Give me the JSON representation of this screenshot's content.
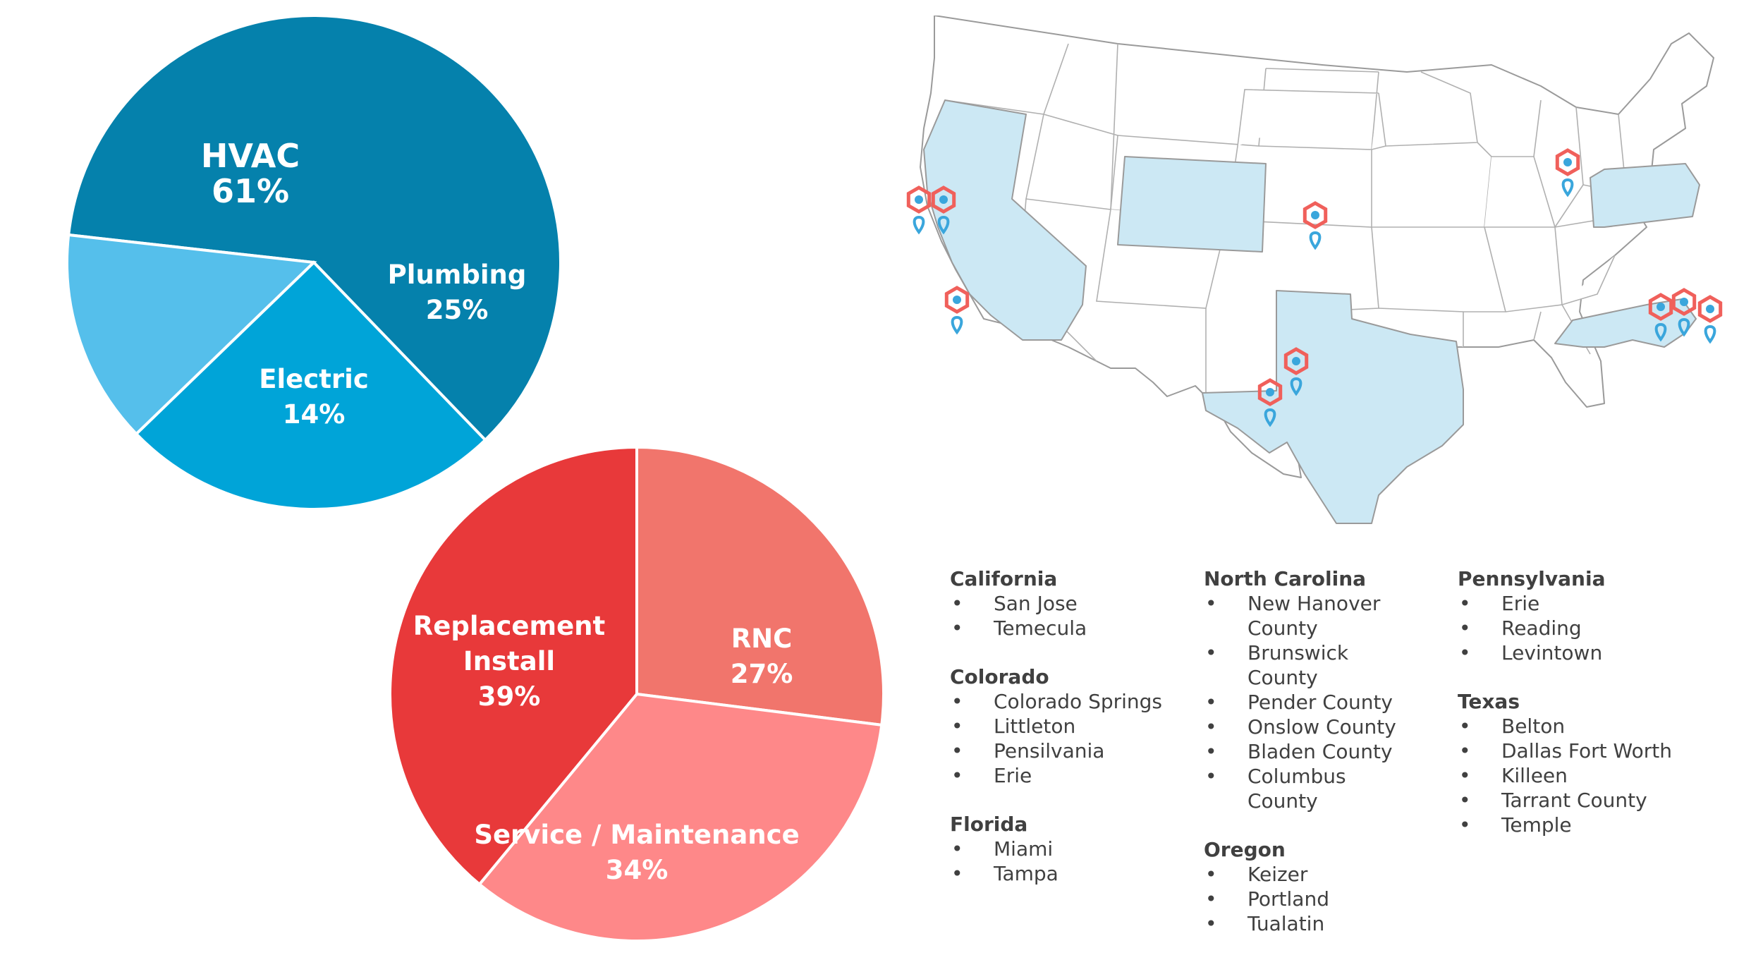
{
  "chart_data": [
    {
      "type": "pie",
      "colors": [
        "#0581ac",
        "#00a4d8",
        "#55bfeb"
      ],
      "slices": [
        {
          "label": "HVAC",
          "value": 61,
          "value_label": "61%"
        },
        {
          "label": "Plumbing",
          "value": 25,
          "value_label": "25%"
        },
        {
          "label": "Electric",
          "value": 14,
          "value_label": "14%"
        }
      ]
    },
    {
      "type": "pie",
      "colors": [
        "#f1756c",
        "#fe8889",
        "#e8393a"
      ],
      "slices": [
        {
          "label": "RNC",
          "value": 27,
          "value_label": "27%"
        },
        {
          "label": "Service / Maintenance",
          "value": 34,
          "value_label": "34%"
        },
        {
          "label": "Replacement Install",
          "value": 39,
          "value_label": "39%"
        }
      ]
    }
  ],
  "map": {
    "highlight_color": "#cce8f4",
    "marker_color": "#f0605b",
    "pin_color": "#3aa6dc",
    "highlighted_states": [
      "California",
      "Colorado",
      "Texas",
      "North Carolina",
      "Pennsylvania"
    ]
  },
  "locations": {
    "columns": [
      [
        {
          "state": "California",
          "cities": [
            "San Jose",
            "Temecula"
          ]
        },
        {
          "state": "Colorado",
          "cities": [
            "Colorado Springs",
            "Littleton",
            "Pensilvania",
            "Erie"
          ]
        },
        {
          "state": "Florida",
          "cities": [
            "Miami",
            "Tampa"
          ]
        }
      ],
      [
        {
          "state": "North Carolina",
          "cities": [
            "New Hanover County",
            "Brunswick County",
            "Pender County",
            "Onslow County",
            "Bladen County",
            "Columbus County"
          ]
        },
        {
          "state": "Oregon",
          "cities": [
            "Keizer",
            "Portland",
            "Tualatin"
          ]
        }
      ],
      [
        {
          "state": "Pennsylvania",
          "cities": [
            "Erie",
            "Reading",
            "Levintown"
          ]
        },
        {
          "state": "Texas",
          "cities": [
            "Belton",
            "Dallas Fort Worth",
            "Killeen",
            "Tarrant County",
            "Temple"
          ]
        }
      ]
    ]
  }
}
